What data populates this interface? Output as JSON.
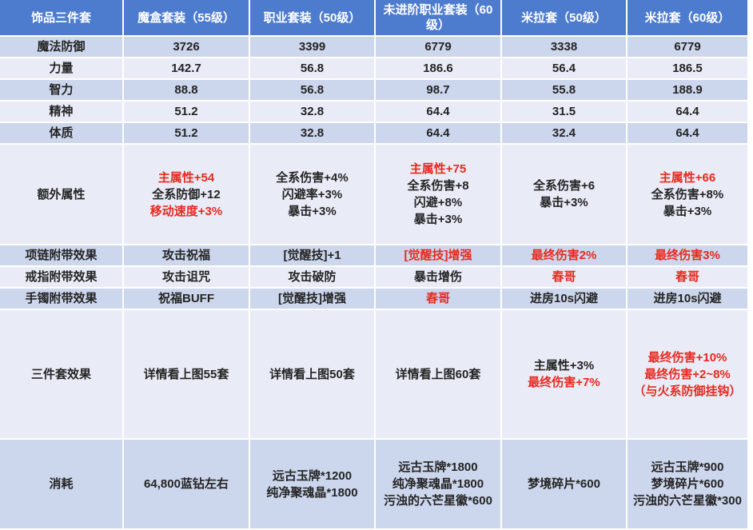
{
  "colors": {
    "header_bg": "#4d7ccf",
    "header_text": "#ffffff",
    "row_dark": "#ccd6ec",
    "row_light": "#e9ecf7",
    "grid_line": "#ffffff",
    "text": "#242424",
    "accent_red": "#e8291f"
  },
  "chart_data": {
    "type": "table",
    "columns": [
      "饰品三件套",
      "魔盒套装（55级）",
      "职业套装（50级）",
      "未进阶职业套装（60级）",
      "米拉套（50级）",
      "米拉套（60级）"
    ],
    "rows": [
      {
        "label": "魔法防御",
        "cells": [
          [
            {
              "t": "3726"
            }
          ],
          [
            {
              "t": "3399"
            }
          ],
          [
            {
              "t": "6779"
            }
          ],
          [
            {
              "t": "3338"
            }
          ],
          [
            {
              "t": "6779"
            }
          ]
        ]
      },
      {
        "label": "力量",
        "cells": [
          [
            {
              "t": "142.7"
            }
          ],
          [
            {
              "t": "56.8"
            }
          ],
          [
            {
              "t": "186.6"
            }
          ],
          [
            {
              "t": "56.4"
            }
          ],
          [
            {
              "t": "186.5"
            }
          ]
        ]
      },
      {
        "label": "智力",
        "cells": [
          [
            {
              "t": "88.8"
            }
          ],
          [
            {
              "t": "56.8"
            }
          ],
          [
            {
              "t": "98.7"
            }
          ],
          [
            {
              "t": "55.8"
            }
          ],
          [
            {
              "t": "188.9"
            }
          ]
        ]
      },
      {
        "label": "精神",
        "cells": [
          [
            {
              "t": "51.2"
            }
          ],
          [
            {
              "t": "32.8"
            }
          ],
          [
            {
              "t": "64.4"
            }
          ],
          [
            {
              "t": "31.5"
            }
          ],
          [
            {
              "t": "64.4"
            }
          ]
        ]
      },
      {
        "label": "体质",
        "cells": [
          [
            {
              "t": "51.2"
            }
          ],
          [
            {
              "t": "32.8"
            }
          ],
          [
            {
              "t": "64.4"
            }
          ],
          [
            {
              "t": "32.4"
            }
          ],
          [
            {
              "t": "64.4"
            }
          ]
        ]
      },
      {
        "label": "额外属性",
        "cells": [
          [
            {
              "t": "主属性+54",
              "c": "red"
            },
            {
              "t": "全系防御+12"
            },
            {
              "t": "移动速度+3%",
              "c": "red"
            }
          ],
          [
            {
              "t": "全系伤害+4%"
            },
            {
              "t": "闪避率+3%"
            },
            {
              "t": "暴击+3%"
            }
          ],
          [
            {
              "t": "主属性+75",
              "c": "red"
            },
            {
              "t": "全系伤害+8"
            },
            {
              "t": "闪避+8%"
            },
            {
              "t": "暴击+3%"
            }
          ],
          [
            {
              "t": "全系伤害+6"
            },
            {
              "t": "暴击+3%"
            }
          ],
          [
            {
              "t": "主属性+66",
              "c": "red"
            },
            {
              "t": "全系伤害+8%"
            },
            {
              "t": "暴击+3%"
            }
          ]
        ]
      },
      {
        "label": "项链附带效果",
        "cells": [
          [
            {
              "t": "攻击祝福"
            }
          ],
          [
            {
              "t": "[觉醒技]+1"
            }
          ],
          [
            {
              "t": "[觉醒技]增强",
              "c": "red"
            }
          ],
          [
            {
              "t": "最终伤害2%",
              "c": "red"
            }
          ],
          [
            {
              "t": "最终伤害3%",
              "c": "red"
            }
          ]
        ]
      },
      {
        "label": "戒指附带效果",
        "cells": [
          [
            {
              "t": "攻击诅咒"
            }
          ],
          [
            {
              "t": "攻击破防"
            }
          ],
          [
            {
              "t": "暴击增伤"
            }
          ],
          [
            {
              "t": "春哥",
              "c": "red"
            }
          ],
          [
            {
              "t": "春哥",
              "c": "red"
            }
          ]
        ]
      },
      {
        "label": "手镯附带效果",
        "cells": [
          [
            {
              "t": "祝福BUFF"
            }
          ],
          [
            {
              "t": "[觉醒技]增强"
            }
          ],
          [
            {
              "t": "春哥",
              "c": "red"
            }
          ],
          [
            {
              "t": "进房10s闪避"
            }
          ],
          [
            {
              "t": "进房10s闪避"
            }
          ]
        ]
      },
      {
        "label": "三件套效果",
        "cells": [
          [
            {
              "t": "详情看上图55套"
            }
          ],
          [
            {
              "t": "详情看上图50套"
            }
          ],
          [
            {
              "t": "详情看上图60套"
            }
          ],
          [
            {
              "t": "主属性+3%"
            },
            {
              "t": "最终伤害+7%",
              "c": "red"
            }
          ],
          [
            {
              "t": "最终伤害+10%",
              "c": "red"
            },
            {
              "t": "最终伤害+2~8%",
              "c": "red"
            },
            {
              "t": "（与火系防御挂钩）",
              "c": "red"
            }
          ]
        ]
      },
      {
        "label": "消耗",
        "cells": [
          [
            {
              "t": "64,800蓝钻左右"
            }
          ],
          [
            {
              "t": "远古玉牌*1200"
            },
            {
              "t": "纯净聚魂晶*1800"
            }
          ],
          [
            {
              "t": "远古玉牌*1800"
            },
            {
              "t": "纯净聚魂晶*1800"
            },
            {
              "t": "污浊的六芒星徽*600"
            }
          ],
          [
            {
              "t": "梦境碎片*600"
            }
          ],
          [
            {
              "t": "远古玉牌*900"
            },
            {
              "t": "梦境碎片*600"
            },
            {
              "t": "污浊的六芒星徽*300"
            }
          ]
        ]
      }
    ]
  }
}
